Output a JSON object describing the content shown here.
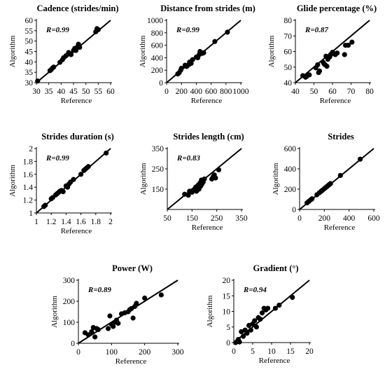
{
  "chart_data": [
    {
      "type": "scatter",
      "title": "Cadence (strides/min)",
      "xlabel": "Reference",
      "ylabel": "Algorithm",
      "annotation": "R=0.99",
      "xlim": [
        30,
        60
      ],
      "ylim": [
        30,
        60
      ],
      "xticks": [
        30,
        35,
        40,
        45,
        50,
        55,
        60
      ],
      "yticks": [
        30,
        35,
        40,
        45,
        50,
        55,
        60
      ],
      "identity_line": true,
      "points": [
        [
          30.5,
          30.8
        ],
        [
          35.5,
          35.8
        ],
        [
          36,
          36.3
        ],
        [
          36.5,
          37
        ],
        [
          37,
          37.5
        ],
        [
          39.5,
          39.8
        ],
        [
          40.5,
          41
        ],
        [
          41,
          42
        ],
        [
          42,
          43
        ],
        [
          43,
          44.5
        ],
        [
          43.5,
          44
        ],
        [
          44,
          43.5
        ],
        [
          45,
          45.5
        ],
        [
          45.5,
          46.5
        ],
        [
          46,
          45.5
        ],
        [
          46.5,
          47
        ],
        [
          47,
          48.5
        ],
        [
          47.5,
          47
        ],
        [
          54,
          54.5
        ],
        [
          54.5,
          56
        ],
        [
          55,
          55.5
        ]
      ]
    },
    {
      "type": "scatter",
      "title": "Distance from strides (m)",
      "xlabel": "Reference",
      "ylabel": "Algorithm",
      "annotation": "R=0.99",
      "xlim": [
        0,
        1000
      ],
      "ylim": [
        0,
        1000
      ],
      "xticks": [
        0,
        200,
        400,
        600,
        800,
        1000
      ],
      "yticks": [
        0,
        200,
        400,
        600,
        800,
        1000
      ],
      "identity_line": true,
      "points": [
        [
          150,
          140
        ],
        [
          170,
          160
        ],
        [
          190,
          200
        ],
        [
          200,
          230
        ],
        [
          250,
          280
        ],
        [
          270,
          260
        ],
        [
          300,
          290
        ],
        [
          310,
          330
        ],
        [
          330,
          310
        ],
        [
          350,
          370
        ],
        [
          400,
          410
        ],
        [
          420,
          400
        ],
        [
          440,
          450
        ],
        [
          450,
          500
        ],
        [
          480,
          470
        ],
        [
          500,
          480
        ],
        [
          650,
          660
        ],
        [
          820,
          810
        ]
      ]
    },
    {
      "type": "scatter",
      "title": "Glide percentage (%)",
      "xlabel": "Reference",
      "ylabel": "Algorithm",
      "annotation": "R=0.87",
      "xlim": [
        40,
        80
      ],
      "ylim": [
        40,
        80
      ],
      "xticks": [
        40,
        50,
        60,
        70,
        80
      ],
      "yticks": [
        40,
        50,
        60,
        70,
        80
      ],
      "identity_line": true,
      "points": [
        [
          44,
          44.5
        ],
        [
          45.5,
          43.5
        ],
        [
          46,
          44
        ],
        [
          46.5,
          45
        ],
        [
          47.5,
          45
        ],
        [
          51,
          49.5
        ],
        [
          52,
          51.5
        ],
        [
          52.5,
          46.5
        ],
        [
          53,
          47.5
        ],
        [
          55,
          53
        ],
        [
          55.5,
          52
        ],
        [
          56,
          51.5
        ],
        [
          56.5,
          57
        ],
        [
          57,
          50.5
        ],
        [
          57.5,
          55
        ],
        [
          58.5,
          56.5
        ],
        [
          59,
          58
        ],
        [
          60,
          59.5
        ],
        [
          61.5,
          58
        ],
        [
          62.5,
          59
        ],
        [
          66.5,
          58
        ],
        [
          67,
          64
        ],
        [
          68.5,
          64
        ],
        [
          70.5,
          66
        ]
      ]
    },
    {
      "type": "scatter",
      "title": "Strides duration (s)",
      "xlabel": "Reference",
      "ylabel": "Algorithm",
      "annotation": "R=0.99",
      "xlim": [
        1,
        2
      ],
      "ylim": [
        1,
        2
      ],
      "xticks": [
        1,
        1.2,
        1.4,
        1.6,
        1.8,
        2
      ],
      "yticks": [
        1,
        1.2,
        1.4,
        1.6,
        1.8,
        2
      ],
      "identity_line": true,
      "points": [
        [
          1.1,
          1.1
        ],
        [
          1.12,
          1.12
        ],
        [
          1.2,
          1.22
        ],
        [
          1.22,
          1.24
        ],
        [
          1.26,
          1.28
        ],
        [
          1.28,
          1.3
        ],
        [
          1.3,
          1.32
        ],
        [
          1.32,
          1.34
        ],
        [
          1.34,
          1.35
        ],
        [
          1.36,
          1.33
        ],
        [
          1.4,
          1.42
        ],
        [
          1.42,
          1.4
        ],
        [
          1.44,
          1.45
        ],
        [
          1.46,
          1.48
        ],
        [
          1.5,
          1.52
        ],
        [
          1.6,
          1.6
        ],
        [
          1.64,
          1.66
        ],
        [
          1.66,
          1.68
        ],
        [
          1.68,
          1.7
        ],
        [
          1.7,
          1.72
        ],
        [
          1.94,
          1.93
        ]
      ]
    },
    {
      "type": "scatter",
      "title": "Strides length (cm)",
      "xlabel": "Reference",
      "ylabel": "Algorithm",
      "annotation": "R=0.83",
      "xlim": [
        50,
        350
      ],
      "ylim": [
        50,
        350
      ],
      "xticks": [
        50,
        150,
        250,
        350
      ],
      "yticks": [
        150,
        250,
        350
      ],
      "identity_line": true,
      "points": [
        [
          120,
          125
        ],
        [
          135,
          120
        ],
        [
          140,
          140
        ],
        [
          150,
          135
        ],
        [
          155,
          145
        ],
        [
          160,
          150
        ],
        [
          165,
          160
        ],
        [
          168,
          140
        ],
        [
          170,
          145
        ],
        [
          172,
          165
        ],
        [
          175,
          170
        ],
        [
          178,
          150
        ],
        [
          180,
          160
        ],
        [
          182,
          180
        ],
        [
          185,
          165
        ],
        [
          188,
          195
        ],
        [
          190,
          175
        ],
        [
          195,
          185
        ],
        [
          200,
          200
        ],
        [
          230,
          200
        ],
        [
          235,
          210
        ],
        [
          240,
          220
        ],
        [
          245,
          205
        ],
        [
          258,
          245
        ]
      ]
    },
    {
      "type": "scatter",
      "title": "Strides",
      "xlabel": "Reference",
      "ylabel": "Algorithm",
      "annotation": "",
      "xlim": [
        0,
        600
      ],
      "ylim": [
        0,
        600
      ],
      "xticks": [
        0,
        200,
        400,
        600
      ],
      "yticks": [
        0,
        200,
        400,
        600
      ],
      "identity_line": true,
      "points": [
        [
          60,
          65
        ],
        [
          75,
          80
        ],
        [
          90,
          95
        ],
        [
          100,
          105
        ],
        [
          140,
          145
        ],
        [
          160,
          165
        ],
        [
          175,
          180
        ],
        [
          185,
          190
        ],
        [
          200,
          205
        ],
        [
          210,
          215
        ],
        [
          220,
          225
        ],
        [
          230,
          235
        ],
        [
          240,
          245
        ],
        [
          250,
          255
        ],
        [
          330,
          335
        ],
        [
          490,
          495
        ]
      ]
    },
    {
      "type": "scatter",
      "title": "Power (W)",
      "xlabel": "Reference",
      "ylabel": "Algorithm",
      "annotation": "R=0.89",
      "xlim": [
        0,
        300
      ],
      "ylim": [
        0,
        300
      ],
      "xticks": [
        0,
        100,
        200,
        300
      ],
      "yticks": [
        0,
        100,
        200,
        300
      ],
      "identity_line": true,
      "points": [
        [
          20,
          50
        ],
        [
          30,
          40
        ],
        [
          40,
          55
        ],
        [
          45,
          75
        ],
        [
          50,
          30
        ],
        [
          55,
          70
        ],
        [
          60,
          65
        ],
        [
          90,
          70
        ],
        [
          95,
          130
        ],
        [
          100,
          90
        ],
        [
          105,
          80
        ],
        [
          110,
          100
        ],
        [
          115,
          110
        ],
        [
          120,
          95
        ],
        [
          130,
          140
        ],
        [
          140,
          145
        ],
        [
          150,
          150
        ],
        [
          155,
          160
        ],
        [
          160,
          165
        ],
        [
          165,
          120
        ],
        [
          170,
          175
        ],
        [
          175,
          190
        ],
        [
          200,
          215
        ],
        [
          250,
          230
        ]
      ]
    },
    {
      "type": "scatter",
      "title": "Gradient (°)",
      "xlabel": "Reference",
      "ylabel": "Algorithm",
      "annotation": "R=0.94",
      "xlim": [
        0,
        20
      ],
      "ylim": [
        0,
        20
      ],
      "xticks": [
        0,
        5,
        10,
        15,
        20
      ],
      "yticks": [
        0,
        5,
        10,
        15,
        20
      ],
      "identity_line": true,
      "points": [
        [
          0.5,
          0
        ],
        [
          1,
          0.5
        ],
        [
          1.2,
          1
        ],
        [
          1.5,
          0.2
        ],
        [
          2,
          3.5
        ],
        [
          2.5,
          2
        ],
        [
          3,
          4
        ],
        [
          3.5,
          3
        ],
        [
          4,
          5.5
        ],
        [
          4.5,
          4
        ],
        [
          5,
          6
        ],
        [
          5.5,
          7
        ],
        [
          6,
          5
        ],
        [
          6.5,
          8
        ],
        [
          7,
          7.5
        ],
        [
          7.5,
          9.5
        ],
        [
          8,
          11
        ],
        [
          8.5,
          10.5
        ],
        [
          9,
          11
        ],
        [
          11,
          11
        ],
        [
          12,
          12
        ],
        [
          15.5,
          14.5
        ]
      ]
    }
  ]
}
